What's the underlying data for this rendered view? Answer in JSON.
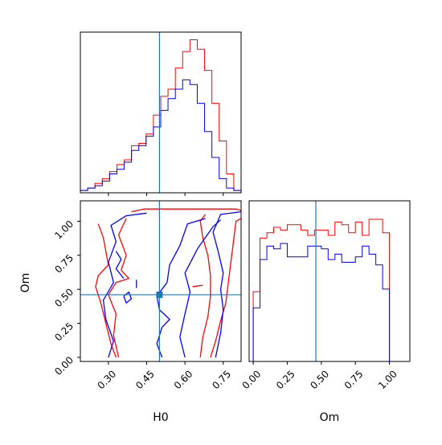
{
  "chart_data": [
    {
      "type": "histogram",
      "panel": "H0 marginal (top-left)",
      "x_range": [
        0.19,
        0.82
      ],
      "bin_edges": [
        0.19,
        0.2186,
        0.2473,
        0.2759,
        0.3045,
        0.3332,
        0.3618,
        0.3905,
        0.4191,
        0.4477,
        0.4764,
        0.505,
        0.5336,
        0.5623,
        0.5909,
        0.6195,
        0.6482,
        0.6768,
        0.7055,
        0.7341,
        0.7627,
        0.7914,
        0.82
      ],
      "series": [
        {
          "color": "#ff0000",
          "values": [
            1,
            2,
            4,
            6,
            9,
            12,
            14,
            20,
            21,
            25,
            33,
            41,
            44,
            53,
            60,
            65,
            61,
            52,
            38,
            22,
            8,
            1
          ]
        },
        {
          "color": "#0000ff",
          "values": [
            1,
            2,
            3,
            5,
            8,
            10,
            13,
            18,
            20,
            24,
            28,
            35,
            40,
            44,
            48,
            46,
            38,
            26,
            15,
            6,
            2,
            1
          ]
        }
      ],
      "truth_line": 0.5,
      "x_ticks": [
        0.3,
        0.45,
        0.6,
        0.75
      ]
    },
    {
      "type": "histogram",
      "panel": "Om marginal (bottom-right)",
      "x_range": [
        -0.03,
        1.15
      ],
      "xlabel": "Om",
      "bin_edges": [
        0.0,
        0.05,
        0.1,
        0.15,
        0.2,
        0.25,
        0.3,
        0.35,
        0.4,
        0.45,
        0.5,
        0.55,
        0.6,
        0.65,
        0.7,
        0.75,
        0.8,
        0.85,
        0.9,
        0.95,
        1.0
      ],
      "series": [
        {
          "color": "#ff0000",
          "values": [
            26,
            46,
            48,
            50,
            49,
            51,
            51,
            49,
            47,
            49,
            49,
            47,
            52,
            51,
            48,
            52,
            47,
            53,
            53,
            48
          ]
        },
        {
          "color": "#0000ff",
          "values": [
            20,
            38,
            43,
            42,
            44,
            39,
            39,
            39,
            43,
            43,
            42,
            38,
            40,
            37,
            37,
            39,
            43,
            40,
            36,
            27
          ]
        }
      ],
      "truth_line": 0.46,
      "x_ticks": [
        0.0,
        0.25,
        0.5,
        0.75,
        1.0
      ],
      "x_tick_labels": [
        "0.00",
        "0.25",
        "0.50",
        "0.75",
        "1.00"
      ]
    },
    {
      "type": "contour",
      "panel": "H0 vs Om 2D (bottom-left)",
      "xlabel": "H0",
      "ylabel": "Om",
      "x_range": [
        0.19,
        0.82
      ],
      "y_range": [
        -0.03,
        1.15
      ],
      "x_ticks": [
        0.3,
        0.45,
        0.6,
        0.75
      ],
      "x_tick_labels": [
        "0.30",
        "0.45",
        "0.60",
        "0.75"
      ],
      "y_ticks": [
        0.0,
        0.25,
        0.5,
        0.75,
        1.0
      ],
      "y_tick_labels": [
        "0.00",
        "0.25",
        "0.50",
        "0.75",
        "1.00"
      ],
      "truth_point": [
        0.5,
        0.46
      ],
      "series": [
        {
          "color": "#ff0000",
          "contours": [
            [
              [
                0.39,
                1.07
              ],
              [
                0.44,
                1.09
              ],
              [
                0.5,
                1.09
              ],
              [
                0.6,
                1.09
              ],
              [
                0.7,
                1.09
              ],
              [
                0.8,
                1.09
              ],
              [
                0.82,
                1.08
              ]
            ],
            [
              [
                0.7,
                0.0
              ],
              [
                0.72,
                0.12
              ],
              [
                0.74,
                0.27
              ],
              [
                0.76,
                0.4
              ],
              [
                0.77,
                0.55
              ],
              [
                0.78,
                0.7
              ],
              [
                0.79,
                0.85
              ],
              [
                0.8,
                1.0
              ],
              [
                0.82,
                1.02
              ]
            ],
            [
              [
                0.66,
                0.0
              ],
              [
                0.67,
                0.15
              ],
              [
                0.69,
                0.3
              ],
              [
                0.7,
                0.45
              ],
              [
                0.7,
                0.6
              ],
              [
                0.69,
                0.75
              ],
              [
                0.67,
                0.88
              ],
              [
                0.66,
                1.0
              ],
              [
                0.68,
                1.05
              ]
            ],
            [
              [
                0.33,
                0.0
              ],
              [
                0.31,
                0.1
              ],
              [
                0.29,
                0.25
              ],
              [
                0.27,
                0.4
              ],
              [
                0.25,
                0.52
              ],
              [
                0.26,
                0.6
              ],
              [
                0.3,
                0.68
              ],
              [
                0.29,
                0.78
              ],
              [
                0.28,
                0.88
              ],
              [
                0.26,
                0.98
              ]
            ],
            [
              [
                0.34,
                0.0
              ],
              [
                0.32,
                0.16
              ],
              [
                0.33,
                0.32
              ],
              [
                0.3,
                0.46
              ],
              [
                0.33,
                0.55
              ],
              [
                0.38,
                0.58
              ],
              [
                0.35,
                0.64
              ],
              [
                0.37,
                0.75
              ],
              [
                0.34,
                0.9
              ],
              [
                0.37,
                1.02
              ]
            ],
            [
              [
                0.63,
                0.52
              ],
              [
                0.67,
                0.53
              ]
            ]
          ]
        },
        {
          "color": "#0000ff",
          "contours": [
            [
              [
                0.51,
                0.0
              ],
              [
                0.49,
                0.1
              ],
              [
                0.51,
                0.22
              ],
              [
                0.54,
                0.28
              ],
              [
                0.5,
                0.35
              ],
              [
                0.49,
                0.45
              ],
              [
                0.53,
                0.55
              ],
              [
                0.54,
                0.68
              ],
              [
                0.58,
                0.82
              ],
              [
                0.61,
                0.98
              ],
              [
                0.68,
                1.02
              ]
            ],
            [
              [
                0.6,
                0.0
              ],
              [
                0.58,
                0.15
              ],
              [
                0.6,
                0.32
              ],
              [
                0.62,
                0.48
              ],
              [
                0.6,
                0.62
              ],
              [
                0.65,
                0.8
              ],
              [
                0.71,
                0.96
              ],
              [
                0.74,
                1.01
              ]
            ],
            [
              [
                0.72,
                0.0
              ],
              [
                0.74,
                0.18
              ],
              [
                0.75,
                0.35
              ],
              [
                0.74,
                0.5
              ],
              [
                0.75,
                0.62
              ],
              [
                0.73,
                0.78
              ],
              [
                0.71,
                0.92
              ],
              [
                0.74,
                1.05
              ],
              [
                0.82,
                1.07
              ]
            ],
            [
              [
                0.3,
                0.0
              ],
              [
                0.32,
                0.12
              ],
              [
                0.29,
                0.28
              ],
              [
                0.28,
                0.42
              ],
              [
                0.32,
                0.55
              ],
              [
                0.3,
                0.7
              ],
              [
                0.33,
                0.85
              ],
              [
                0.31,
                0.97
              ],
              [
                0.37,
                1.04
              ],
              [
                0.45,
                1.06
              ]
            ],
            [
              [
                0.36,
                0.58
              ],
              [
                0.33,
                0.65
              ],
              [
                0.35,
                0.72
              ],
              [
                0.33,
                0.78
              ]
            ],
            [
              [
                0.36,
                0.45
              ],
              [
                0.38,
                0.48
              ],
              [
                0.39,
                0.43
              ],
              [
                0.37,
                0.4
              ],
              [
                0.36,
                0.45
              ]
            ],
            [
              [
                0.41,
                0.51
              ],
              [
                0.41,
                0.57
              ]
            ]
          ]
        }
      ]
    }
  ]
}
